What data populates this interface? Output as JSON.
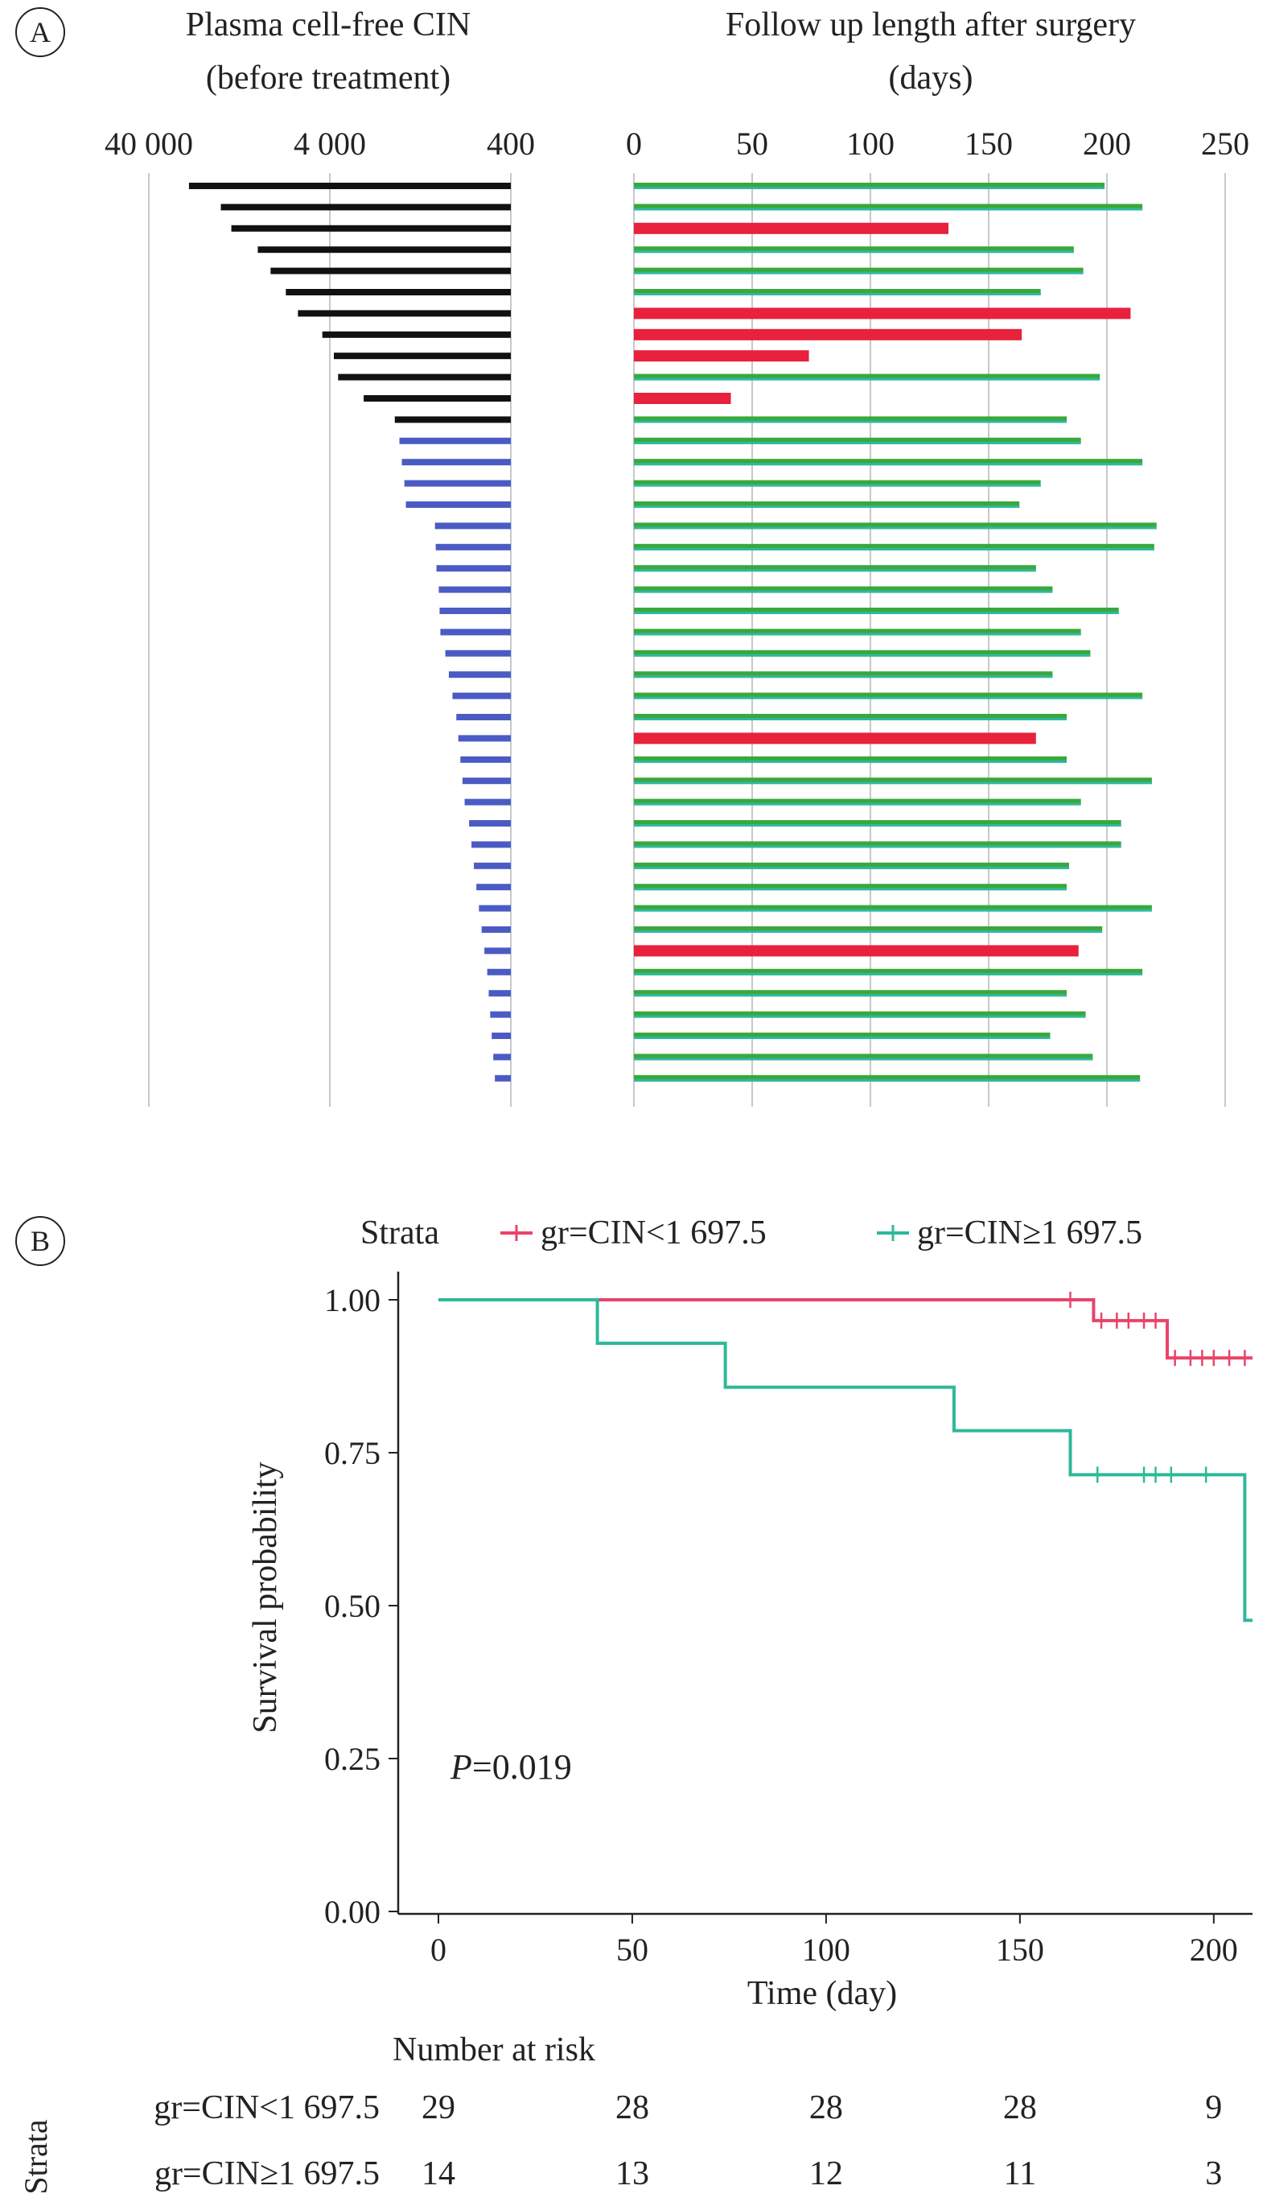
{
  "panel_a": {
    "label": "A",
    "left_title_line1": "Plasma cell-free CIN",
    "left_title_line2": "(before treatment)",
    "right_title_line1": "Follow up length after surgery",
    "right_title_line2": "(days)"
  },
  "panel_b": {
    "label": "B",
    "strata_title": "Strata",
    "strata_low": "gr=CIN<1 697.5",
    "strata_high": "gr=CIN≥1 697.5",
    "pvalue_label": "P",
    "pvalue_value": "=0.019",
    "risk_title": "Number at risk",
    "risk_axis_label": "Strata"
  },
  "chart_data": [
    {
      "type": "bar",
      "title": "Plasma cell-free CIN (before treatment)",
      "scale": "log",
      "direction": "reversed",
      "xlim": [
        400,
        40000
      ],
      "x_ticks": [
        "40 000",
        "4 000",
        "400"
      ],
      "grid": true,
      "colors": {
        "high": "#111111",
        "low": "#4a5bc4"
      },
      "values": [
        24000,
        16000,
        14000,
        10000,
        8500,
        7000,
        6000,
        4400,
        3800,
        3600,
        2600,
        1750,
        1650,
        1600,
        1550,
        1520,
        1050,
        1040,
        1030,
        1000,
        990,
        980,
        920,
        880,
        840,
        800,
        780,
        760,
        740,
        720,
        680,
        660,
        640,
        620,
        600,
        580,
        560,
        540,
        530,
        520,
        510,
        500,
        490
      ],
      "group": [
        "high",
        "high",
        "high",
        "high",
        "high",
        "high",
        "high",
        "high",
        "high",
        "high",
        "high",
        "high",
        "low",
        "low",
        "low",
        "low",
        "low",
        "low",
        "low",
        "low",
        "low",
        "low",
        "low",
        "low",
        "low",
        "low",
        "low",
        "low",
        "low",
        "low",
        "low",
        "low",
        "low",
        "low",
        "low",
        "low",
        "low",
        "low",
        "low",
        "low",
        "low",
        "low",
        "low"
      ]
    },
    {
      "type": "bar",
      "title": "Follow up length after surgery (days)",
      "xlim": [
        0,
        250
      ],
      "x_ticks": [
        0,
        50,
        100,
        150,
        200,
        250
      ],
      "grid": true,
      "colors": {
        "event": "#e8213c",
        "censored": "#3aa83a",
        "teal": "#2fb8a0"
      },
      "values": [
        199,
        215,
        133,
        186,
        190,
        172,
        210,
        164,
        74,
        197,
        41,
        183,
        189,
        215,
        172,
        163,
        221,
        220,
        170,
        177,
        205,
        189,
        193,
        177,
        215,
        183,
        170,
        183,
        219,
        189,
        206,
        206,
        184,
        183,
        219,
        198,
        188,
        215,
        183,
        191,
        176,
        194,
        214
      ],
      "status": [
        "censored",
        "censored",
        "event",
        "censored",
        "censored",
        "censored",
        "event",
        "event",
        "event",
        "censored",
        "event",
        "censored",
        "censored",
        "censored",
        "censored",
        "censored",
        "censored",
        "censored",
        "censored",
        "censored",
        "censored",
        "censored",
        "censored",
        "censored",
        "censored",
        "censored",
        "event",
        "censored",
        "censored",
        "censored",
        "censored",
        "censored",
        "censored",
        "censored",
        "censored",
        "censored",
        "event",
        "censored",
        "censored",
        "censored",
        "censored",
        "censored",
        "censored"
      ]
    },
    {
      "type": "line",
      "title": "",
      "xlabel": "Time (day)",
      "ylabel": "Survival probability",
      "xlim": [
        0,
        210
      ],
      "ylim": [
        0,
        1
      ],
      "x_ticks": [
        0,
        50,
        100,
        150,
        200
      ],
      "y_ticks": [
        "0.00",
        "0.25",
        "0.50",
        "0.75",
        "1.00"
      ],
      "legend_position": "top",
      "series": [
        {
          "name": "gr=CIN<1 697.5",
          "color": "#e8446a",
          "steps": [
            [
              0,
              1.0
            ],
            [
              169,
              0.966
            ],
            [
              188,
              0.905
            ],
            [
              210,
              0.905
            ]
          ],
          "censor_marks": [
            [
              163,
              1.0
            ],
            [
              171,
              0.966
            ],
            [
              175,
              0.966
            ],
            [
              178,
              0.966
            ],
            [
              182,
              0.966
            ],
            [
              185,
              0.966
            ],
            [
              190,
              0.905
            ],
            [
              194,
              0.905
            ],
            [
              197,
              0.905
            ],
            [
              200,
              0.905
            ],
            [
              204,
              0.905
            ],
            [
              208,
              0.905
            ]
          ]
        },
        {
          "name": "gr=CIN≥1 697.5",
          "color": "#2fb89a",
          "steps": [
            [
              0,
              1.0
            ],
            [
              41,
              0.929
            ],
            [
              74,
              0.857
            ],
            [
              133,
              0.786
            ],
            [
              163,
              0.714
            ],
            [
              208,
              0.476
            ],
            [
              210,
              0.476
            ]
          ],
          "censor_marks": [
            [
              170,
              0.714
            ],
            [
              182,
              0.714
            ],
            [
              185,
              0.714
            ],
            [
              189,
              0.714
            ],
            [
              198,
              0.714
            ]
          ]
        }
      ],
      "number_at_risk": {
        "times": [
          0,
          50,
          100,
          150,
          200
        ],
        "rows": [
          {
            "name": "gr=CIN<1 697.5",
            "values": [
              "29",
              "28",
              "28",
              "28",
              "9"
            ]
          },
          {
            "name": "gr=CIN≥1 697.5",
            "values": [
              "14",
              "13",
              "12",
              "11",
              "3"
            ]
          }
        ]
      }
    }
  ]
}
